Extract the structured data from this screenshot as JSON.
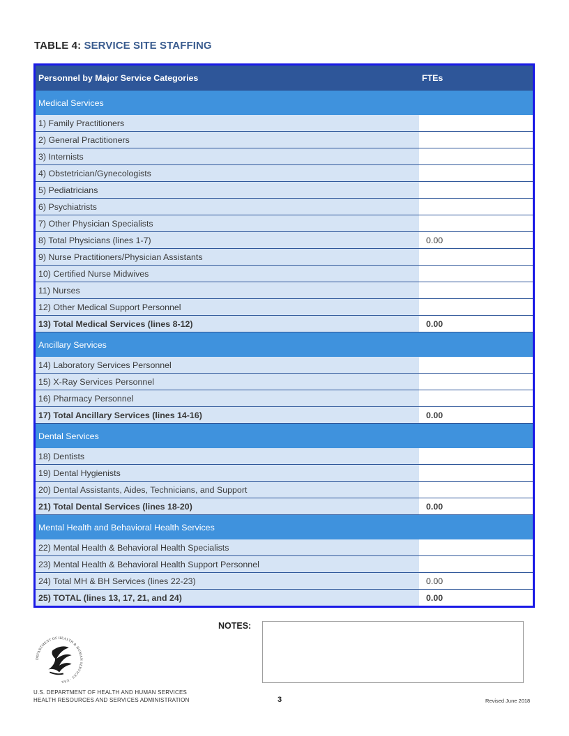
{
  "title": {
    "prefix": "TABLE 4:",
    "name": "SERVICE SITE STAFFING"
  },
  "table": {
    "header": {
      "category": "Personnel by Major Service Categories",
      "ftes": "FTEs"
    },
    "medical_label": "Medical Services",
    "medical": [
      {
        "label": "1) Family Practitioners",
        "value": ""
      },
      {
        "label": "2) General Practitioners",
        "value": ""
      },
      {
        "label": "3) Internists",
        "value": ""
      },
      {
        "label": "4) Obstetrician/Gynecologists",
        "value": ""
      },
      {
        "label": "5) Pediatricians",
        "value": ""
      },
      {
        "label": "6) Psychiatrists",
        "value": ""
      },
      {
        "label": "7) Other Physician Specialists",
        "value": ""
      },
      {
        "label": "8) Total Physicians (lines 1-7)",
        "value": "0.00"
      },
      {
        "label": "9) Nurse Practitioners/Physician Assistants",
        "value": ""
      },
      {
        "label": "10) Certified Nurse Midwives",
        "value": ""
      },
      {
        "label": "11) Nurses",
        "value": ""
      },
      {
        "label": "12) Other Medical Support Personnel",
        "value": ""
      },
      {
        "label": "13) Total Medical Services (lines 8-12)",
        "value": "0.00"
      }
    ],
    "ancillary_label": "Ancillary Services",
    "ancillary": [
      {
        "label": "14) Laboratory Services Personnel",
        "value": ""
      },
      {
        "label": "15) X-Ray Services Personnel",
        "value": ""
      },
      {
        "label": "16) Pharmacy Personnel",
        "value": ""
      },
      {
        "label": "17) Total Ancillary Services (lines 14-16)",
        "value": "0.00"
      }
    ],
    "dental_label": "Dental Services",
    "dental": [
      {
        "label": "18) Dentists",
        "value": ""
      },
      {
        "label": "19) Dental Hygienists",
        "value": ""
      },
      {
        "label": "20) Dental Assistants, Aides, Technicians, and Support",
        "value": ""
      },
      {
        "label": "21) Total Dental Services (lines 18-20)",
        "value": "0.00"
      }
    ],
    "mh_label": "Mental Health and Behavioral Health Services",
    "mh": [
      {
        "label": "22) Mental Health & Behavioral Health Specialists",
        "value": ""
      },
      {
        "label": "23) Mental Health & Behavioral Health Support Personnel",
        "value": ""
      },
      {
        "label": "24) Total MH & BH Services (lines 22-23)",
        "value": "0.00"
      },
      {
        "label": "25) TOTAL (lines 13, 17, 21, and 24)",
        "value": "0.00"
      }
    ]
  },
  "notes": {
    "label": "NOTES:",
    "value": ""
  },
  "footer": {
    "dept_line1": "U.S. DEPARTMENT OF HEALTH AND HUMAN SERVICES",
    "dept_line2": "HEALTH RESOURCES AND SERVICES ADMINISTRATION",
    "page": "3",
    "revised": "Revised June 2018",
    "logo_text": "DEPARTMENT OF HEALTH & HUMAN SERVICES · USA"
  }
}
